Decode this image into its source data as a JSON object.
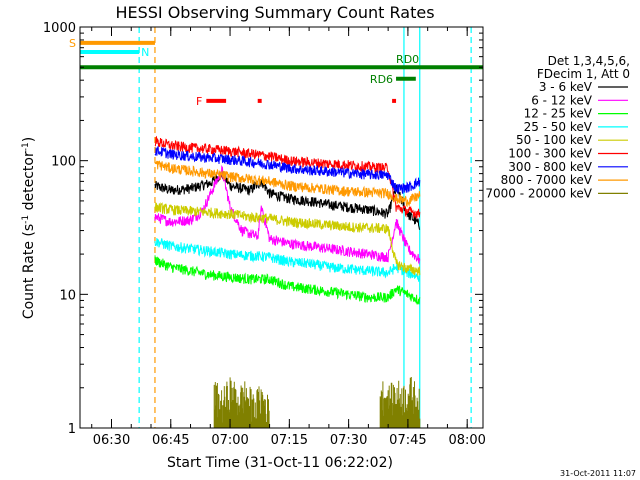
{
  "chart_data": {
    "type": "line",
    "title": "HESSI Observing Summary Count Rates",
    "ylabel_prefix": "Count Rate (s",
    "ylabel_sup": "-1",
    "ylabel_mid": " detector",
    "ylabel_suffix": ")",
    "xlabel": "Start Time (31-Oct-11 06:22:02)",
    "yscale": "log",
    "ylim": [
      1,
      1000
    ],
    "xlim": [
      "06:22:02",
      "08:04:00"
    ],
    "grid": false,
    "legend_position": "right",
    "x_ticks": [
      "06:30",
      "06:45",
      "07:00",
      "07:15",
      "07:30",
      "07:45",
      "08:00"
    ],
    "y_ticks": [
      "1",
      "10",
      "100",
      "1000"
    ],
    "legend_header": [
      "Det 1,3,4,5,6,",
      "FDecim 1, Att 0"
    ],
    "series": [
      {
        "name": "3 - 6 keV",
        "color": "#000000",
        "x": [
          "06:41:00",
          "06:45:00",
          "06:50:00",
          "06:55:00",
          "06:58:00",
          "07:00:00",
          "07:05:00",
          "07:08:00",
          "07:10:00",
          "07:15:00",
          "07:20:00",
          "07:25:00",
          "07:30:00",
          "07:35:00",
          "07:40:00",
          "07:42:00",
          "07:45:00",
          "07:48:00"
        ],
        "y": [
          65,
          60,
          62,
          68,
          80,
          65,
          60,
          70,
          57,
          52,
          50,
          47,
          45,
          43,
          40,
          62,
          40,
          33
        ]
      },
      {
        "name": "6 - 12 keV",
        "color": "#ff00ff",
        "x": [
          "06:41:00",
          "06:45:00",
          "06:50:00",
          "06:53:00",
          "06:56:00",
          "06:58:00",
          "07:00:00",
          "07:03:00",
          "07:07:00",
          "07:08:00",
          "07:10:00",
          "07:15:00",
          "07:20:00",
          "07:25:00",
          "07:30:00",
          "07:35:00",
          "07:40:00",
          "07:42:00",
          "07:45:00",
          "07:48:00"
        ],
        "y": [
          38,
          35,
          36,
          42,
          65,
          85,
          45,
          30,
          27,
          45,
          26,
          24,
          23,
          22,
          21,
          20,
          19,
          35,
          22,
          18
        ]
      },
      {
        "name": "12 - 25 keV",
        "color": "#00ff00",
        "x": [
          "06:41:00",
          "06:45:00",
          "06:50:00",
          "06:55:00",
          "07:00:00",
          "07:05:00",
          "07:10:00",
          "07:15:00",
          "07:20:00",
          "07:25:00",
          "07:30:00",
          "07:35:00",
          "07:40:00",
          "07:42:00",
          "07:45:00",
          "07:48:00"
        ],
        "y": [
          18,
          16,
          15,
          14,
          13.5,
          13,
          13,
          11.5,
          11,
          10.5,
          10,
          9.5,
          9.5,
          11,
          10,
          9
        ]
      },
      {
        "name": "25 - 50 keV",
        "color": "#00ffff",
        "x": [
          "06:41:00",
          "06:45:00",
          "06:50:00",
          "06:55:00",
          "07:00:00",
          "07:05:00",
          "07:10:00",
          "07:15:00",
          "07:20:00",
          "07:25:00",
          "07:30:00",
          "07:35:00",
          "07:40:00",
          "07:42:00",
          "07:45:00",
          "07:48:00"
        ],
        "y": [
          25,
          23,
          22,
          21,
          20,
          19.5,
          19,
          17.5,
          17,
          16,
          15.5,
          15,
          14.5,
          16,
          14.5,
          13.5
        ]
      },
      {
        "name": "50 - 100 keV",
        "color": "#cccc00",
        "x": [
          "06:41:00",
          "06:45:00",
          "06:50:00",
          "06:55:00",
          "07:00:00",
          "07:05:00",
          "07:10:00",
          "07:15:00",
          "07:20:00",
          "07:25:00",
          "07:30:00",
          "07:35:00",
          "07:40:00",
          "07:42:00",
          "07:45:00",
          "07:48:00"
        ],
        "y": [
          45,
          43,
          42,
          41,
          40,
          38,
          37,
          35,
          34,
          33,
          32,
          31.5,
          31,
          17,
          15.5,
          15
        ]
      },
      {
        "name": "100 - 300 keV",
        "color": "#ff0000",
        "x": [
          "06:41:00",
          "06:45:00",
          "06:50:00",
          "06:55:00",
          "07:00:00",
          "07:05:00",
          "07:10:00",
          "07:15:00",
          "07:20:00",
          "07:25:00",
          "07:30:00",
          "07:35:00",
          "07:40:00",
          "07:42:00",
          "07:45:00",
          "07:48:00"
        ],
        "y": [
          140,
          130,
          125,
          122,
          118,
          113,
          108,
          100,
          97,
          95,
          93,
          90,
          88,
          45,
          42,
          40
        ]
      },
      {
        "name": "300 - 800 keV",
        "color": "#0000ff",
        "x": [
          "06:41:00",
          "06:45:00",
          "06:50:00",
          "06:55:00",
          "07:00:00",
          "07:05:00",
          "07:10:00",
          "07:15:00",
          "07:20:00",
          "07:25:00",
          "07:30:00",
          "07:35:00",
          "07:40:00",
          "07:42:00",
          "07:45:00",
          "07:48:00"
        ],
        "y": [
          120,
          112,
          108,
          105,
          102,
          98,
          94,
          88,
          85,
          83,
          81,
          79,
          78,
          62,
          63,
          70
        ]
      },
      {
        "name": "800 - 7000 keV",
        "color": "#ff9900",
        "x": [
          "06:41:00",
          "06:45:00",
          "06:50:00",
          "06:55:00",
          "07:00:00",
          "07:05:00",
          "07:10:00",
          "07:15:00",
          "07:20:00",
          "07:25:00",
          "07:30:00",
          "07:35:00",
          "07:40:00",
          "07:42:00",
          "07:45:00",
          "07:48:00"
        ],
        "y": [
          95,
          88,
          84,
          80,
          76,
          73,
          70,
          65,
          63,
          61,
          59,
          58,
          57,
          52,
          50,
          55
        ]
      },
      {
        "name": "7000 - 20000 keV",
        "color": "#808000",
        "x": [
          "06:56:00",
          "06:58:00",
          "07:00:00",
          "07:02:00",
          "07:04:00",
          "07:06:00",
          "07:08:00",
          "07:10:00",
          "07:38:00",
          "07:40:00",
          "07:42:00",
          "07:44:00",
          "07:46:00",
          "07:48:00"
        ],
        "y": [
          1.8,
          1.5,
          1.9,
          1.6,
          1.8,
          1.4,
          1.7,
          1.3,
          1.9,
          1.6,
          1.8,
          1.7,
          1.9,
          1.5
        ]
      }
    ],
    "flag_bars": [
      {
        "label": "S",
        "color": "#ff9900",
        "y": 760,
        "start": "06:22:02",
        "end": "06:41:00"
      },
      {
        "label": "N",
        "color": "#00ffff",
        "y": 650,
        "start": "06:22:02",
        "end": "06:37:00"
      },
      {
        "label": "F",
        "color": "#ff0000",
        "y": 280,
        "segments": [
          [
            "06:54:00",
            "06:59:00"
          ],
          [
            "07:07:00",
            "07:08:00"
          ],
          [
            "07:41:00",
            "07:42:00"
          ]
        ]
      },
      {
        "label": "RD0",
        "color": "#008000",
        "y": 500,
        "start": "06:22:02",
        "end": "08:04:00"
      },
      {
        "label": "RD6",
        "color": "#008000",
        "y": 410,
        "start": "07:42:00",
        "end": "07:47:00"
      }
    ],
    "vertical_markers": [
      {
        "x": "06:37:00",
        "color": "#00ffff",
        "style": "dashed"
      },
      {
        "x": "06:41:00",
        "color": "#ff9900",
        "style": "dashed"
      },
      {
        "x": "07:44:00",
        "color": "#00ffff",
        "style": "solid"
      },
      {
        "x": "07:48:00",
        "color": "#00ffff",
        "style": "solid"
      },
      {
        "x": "08:01:00",
        "color": "#00ffff",
        "style": "dashed"
      }
    ],
    "timestamp": "31-Oct-2011 11:07"
  }
}
